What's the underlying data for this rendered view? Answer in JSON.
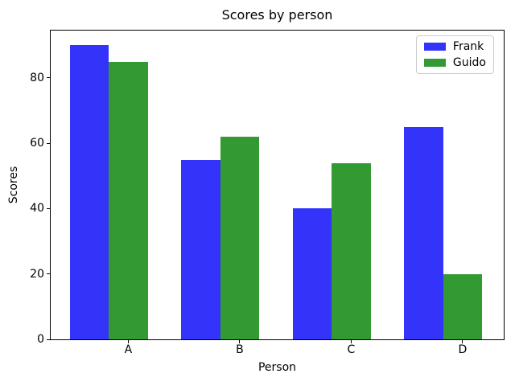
{
  "chart_data": {
    "type": "bar",
    "title": "Scores by person",
    "xlabel": "Person",
    "ylabel": "Scores",
    "categories": [
      "A",
      "B",
      "C",
      "D"
    ],
    "series": [
      {
        "name": "Frank",
        "color": "#3333fa",
        "values": [
          90,
          55,
          40,
          65
        ]
      },
      {
        "name": "Guido",
        "color": "#339a33",
        "values": [
          85,
          62,
          54,
          20
        ]
      }
    ],
    "yticks": [
      0,
      20,
      40,
      60,
      80
    ],
    "ylim": [
      0,
      94.5
    ],
    "grid": false,
    "legend_position": "upper right",
    "colors": {
      "background": "#ffffff",
      "spine": "#000000",
      "tick_text": "#000000",
      "legend_border": "#cccccc"
    }
  }
}
